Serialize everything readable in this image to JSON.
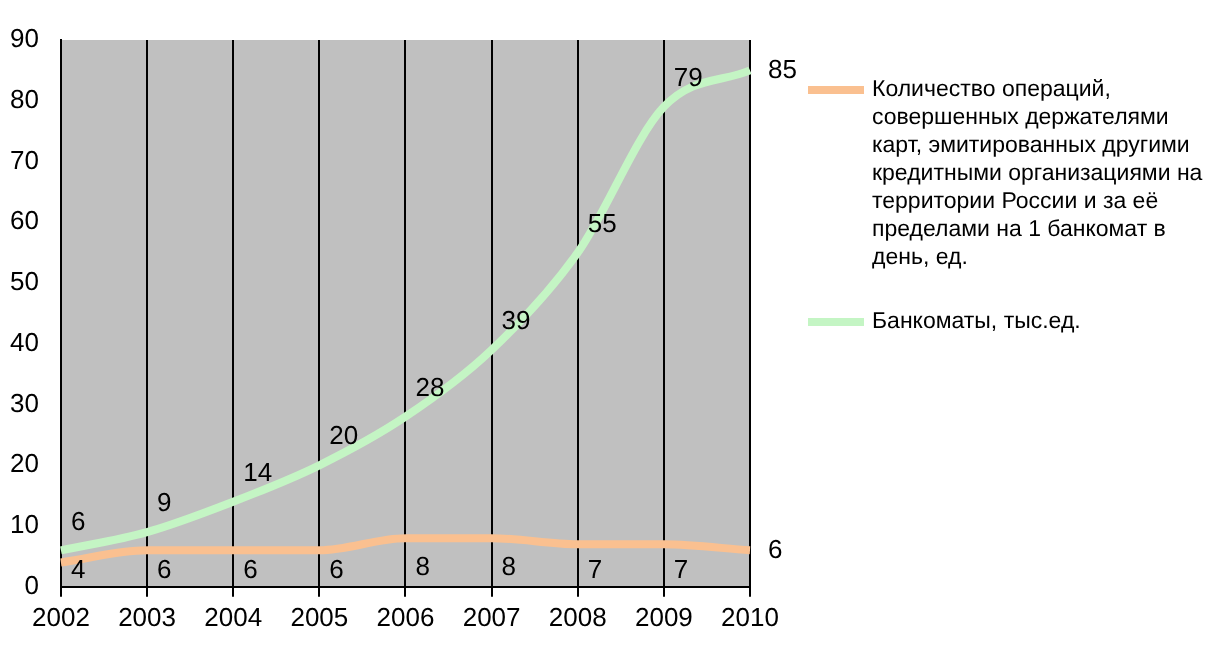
{
  "chart_data": {
    "type": "line",
    "categories": [
      "2002",
      "2003",
      "2004",
      "2005",
      "2006",
      "2007",
      "2008",
      "2009",
      "2010"
    ],
    "series": [
      {
        "name": "Количество операций, совершенных держателями карт, эмитированных другими кредитными организациями на территории России и за её пределами на 1 банкомат в день, ед.",
        "color": "#fac090",
        "values": [
          4,
          6,
          6,
          6,
          8,
          8,
          7,
          7,
          6
        ]
      },
      {
        "name": "Банкоматы, тыс.ед.",
        "color": "#c4f5c4",
        "values": [
          6,
          9,
          14,
          20,
          28,
          39,
          55,
          79,
          85
        ]
      }
    ],
    "ylim": [
      0,
      90
    ],
    "yticks": [
      0,
      10,
      20,
      30,
      40,
      50,
      60,
      70,
      80,
      90
    ],
    "grid": "x",
    "legend": "right",
    "marker": "none",
    "data_labels": true
  }
}
